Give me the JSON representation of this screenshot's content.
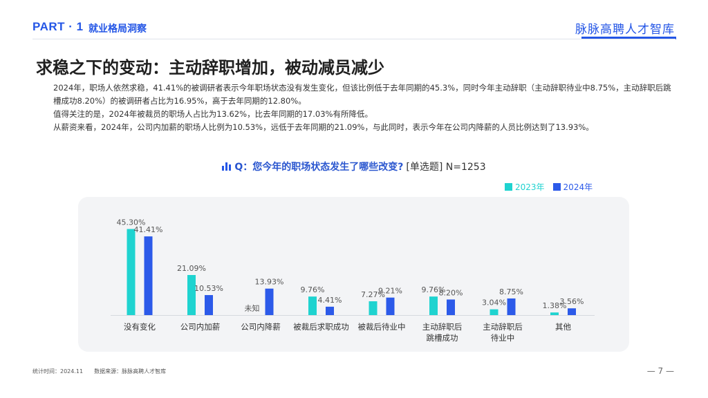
{
  "header": {
    "part": "PART · 1",
    "section": "就业格局洞察",
    "brand": "脉脉高聘人才智库"
  },
  "title": "求稳之下的变动：主动辞职增加，被动减员减少",
  "paragraphs": [
    "2024年，职场人依然求稳，41.41%的被调研者表示今年职场状态没有发生变化，但该比例低于去年同期的45.3%，同时今年主动辞职（主动辞职待业中8.75%，主动辞职后跳槽成功8.20%）的被调研者占比为16.95%，高于去年同期的12.80%。",
    "值得关注的是，2024年被裁员的职场人占比为13.62%，比去年同期的17.03%有所降低。",
    "从薪资来看，2024年，公司内加薪的职场人比例为10.53%，远低于去年同期的21.09%，与此同时，表示今年在公司内降薪的人员比例达到了13.93%。"
  ],
  "question": {
    "text": "Q：您今年的职场状态发生了哪些改变?",
    "meta": "[单选题] N=1253"
  },
  "colors": {
    "series_2023": "#1fd3d0",
    "series_2024": "#2c5ae9",
    "accent": "#2456e6"
  },
  "chart_data": {
    "type": "bar",
    "categories": [
      "没有变化",
      "公司内加薪",
      "公司内降薪",
      "被裁后求职成功",
      "被裁后待业中",
      "主动辞职后\n跳槽成功",
      "主动辞职后\n待业中",
      "其他"
    ],
    "series": [
      {
        "name": "2023年",
        "values": [
          45.3,
          21.09,
          null,
          9.76,
          7.27,
          9.76,
          3.04,
          1.38
        ],
        "labels": [
          "45.30%",
          "21.09%",
          "未知",
          "9.76%",
          "7.27%",
          "9.76%",
          "3.04%",
          "1.38%"
        ]
      },
      {
        "name": "2024年",
        "values": [
          41.41,
          10.53,
          13.93,
          4.41,
          9.21,
          8.2,
          8.75,
          3.56
        ],
        "labels": [
          "41.41%",
          "10.53%",
          "13.93%",
          "4.41%",
          "9.21%",
          "8.20%",
          "8.75%",
          "3.56%"
        ]
      }
    ],
    "ylim": [
      0,
      50
    ],
    "legend_position": "top-right",
    "grid": false
  },
  "footer": {
    "time": "统计时间：2024.11",
    "source": "数据来源：脉脉高聘人才智库"
  },
  "page_number": "— 7 —"
}
